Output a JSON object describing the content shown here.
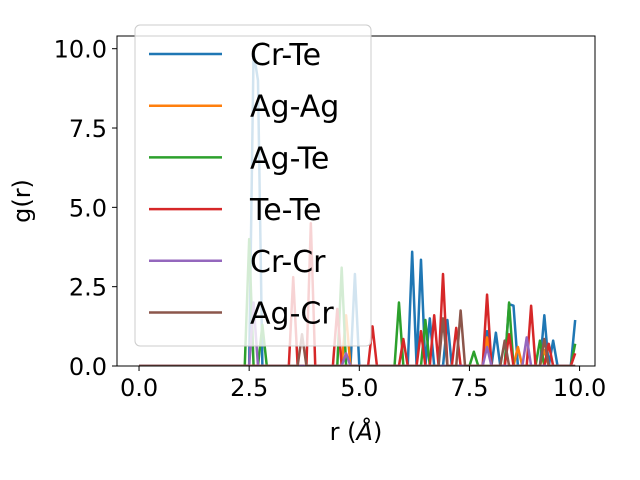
{
  "chart_data": {
    "type": "line",
    "xlabel_main": "r (",
    "xlabel_unit": "Å",
    "xlabel_close": ")",
    "ylabel": "g(r)",
    "xlim": [
      -0.5,
      10.35
    ],
    "ylim": [
      0,
      10.4
    ],
    "xticks": [
      0.0,
      2.5,
      5.0,
      7.5,
      10.0
    ],
    "xtick_labels": [
      "0.0",
      "2.5",
      "5.0",
      "7.5",
      "10.0"
    ],
    "yticks": [
      0.0,
      2.5,
      5.0,
      7.5,
      10.0
    ],
    "ytick_labels": [
      "0.0",
      "2.5",
      "5.0",
      "7.5",
      "10.0"
    ],
    "legend_position": "upper-left",
    "grid": false,
    "baseline": 0,
    "series": [
      {
        "name": "Cr-Te",
        "color": "#1f77b4",
        "peaks": [
          [
            2.6,
            9.9
          ],
          [
            2.7,
            9.0
          ],
          [
            4.9,
            2.9
          ],
          [
            6.2,
            3.6
          ],
          [
            6.4,
            3.35
          ],
          [
            6.6,
            1.5
          ],
          [
            7.0,
            1.45
          ],
          [
            7.9,
            1.1
          ],
          [
            8.1,
            1.05
          ],
          [
            8.4,
            1.95
          ],
          [
            8.5,
            1.9
          ],
          [
            9.2,
            1.6
          ],
          [
            9.4,
            0.8
          ],
          [
            9.9,
            1.45
          ]
        ]
      },
      {
        "name": "Ag-Ag",
        "color": "#ff7f0e",
        "peaks": [
          [
            4.7,
            1.6
          ],
          [
            7.9,
            0.9
          ],
          [
            8.6,
            0.6
          ],
          [
            9.2,
            0.5
          ]
        ]
      },
      {
        "name": "Ag-Te",
        "color": "#2ca02c",
        "peaks": [
          [
            2.5,
            4.0
          ],
          [
            2.8,
            1.3
          ],
          [
            4.6,
            3.1
          ],
          [
            5.9,
            2.0
          ],
          [
            6.5,
            1.45
          ],
          [
            7.6,
            0.45
          ],
          [
            8.4,
            2.0
          ],
          [
            9.1,
            0.8
          ],
          [
            9.9,
            0.7
          ]
        ]
      },
      {
        "name": "Te-Te",
        "color": "#d62728",
        "peaks": [
          [
            3.5,
            2.8
          ],
          [
            3.9,
            4.5
          ],
          [
            4.5,
            1.8
          ],
          [
            5.3,
            1.25
          ],
          [
            6.0,
            0.85
          ],
          [
            6.4,
            1.1
          ],
          [
            6.7,
            1.6
          ],
          [
            6.9,
            2.9
          ],
          [
            7.2,
            1.2
          ],
          [
            7.9,
            2.25
          ],
          [
            8.4,
            1.0
          ],
          [
            8.9,
            1.9
          ],
          [
            9.3,
            0.7
          ],
          [
            9.9,
            0.4
          ]
        ]
      },
      {
        "name": "Cr-Cr",
        "color": "#9467bd",
        "peaks": [
          [
            2.6,
            2.0
          ],
          [
            4.7,
            0.4
          ],
          [
            7.9,
            0.6
          ],
          [
            8.8,
            0.9
          ]
        ]
      },
      {
        "name": "Ag-Cr",
        "color": "#8c564b",
        "peaks": [
          [
            3.7,
            1.0
          ],
          [
            6.9,
            1.5
          ],
          [
            7.3,
            1.75
          ],
          [
            8.3,
            0.8
          ],
          [
            9.2,
            0.85
          ]
        ]
      }
    ]
  }
}
